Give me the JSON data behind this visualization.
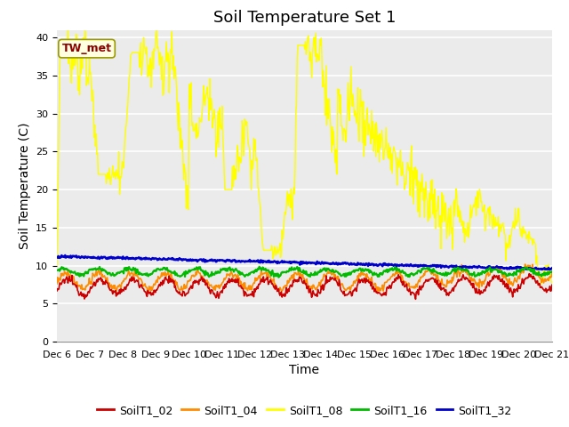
{
  "title": "Soil Temperature Set 1",
  "xlabel": "Time",
  "ylabel": "Soil Temperature (C)",
  "ylim": [
    0,
    41
  ],
  "yticks": [
    0,
    5,
    10,
    15,
    20,
    25,
    30,
    35,
    40
  ],
  "annotation_text": "TW_met",
  "annotation_color": "#8B0000",
  "annotation_bg": "#FFFFE0",
  "series_colors": {
    "SoilT1_02": "#CC0000",
    "SoilT1_04": "#FF8C00",
    "SoilT1_08": "#FFFF00",
    "SoilT1_16": "#00BB00",
    "SoilT1_32": "#0000CC"
  },
  "background_color": "#EBEBEB",
  "grid_color": "#FFFFFF",
  "title_fontsize": 13,
  "axis_label_fontsize": 10,
  "tick_label_fontsize": 8,
  "legend_fontsize": 9
}
